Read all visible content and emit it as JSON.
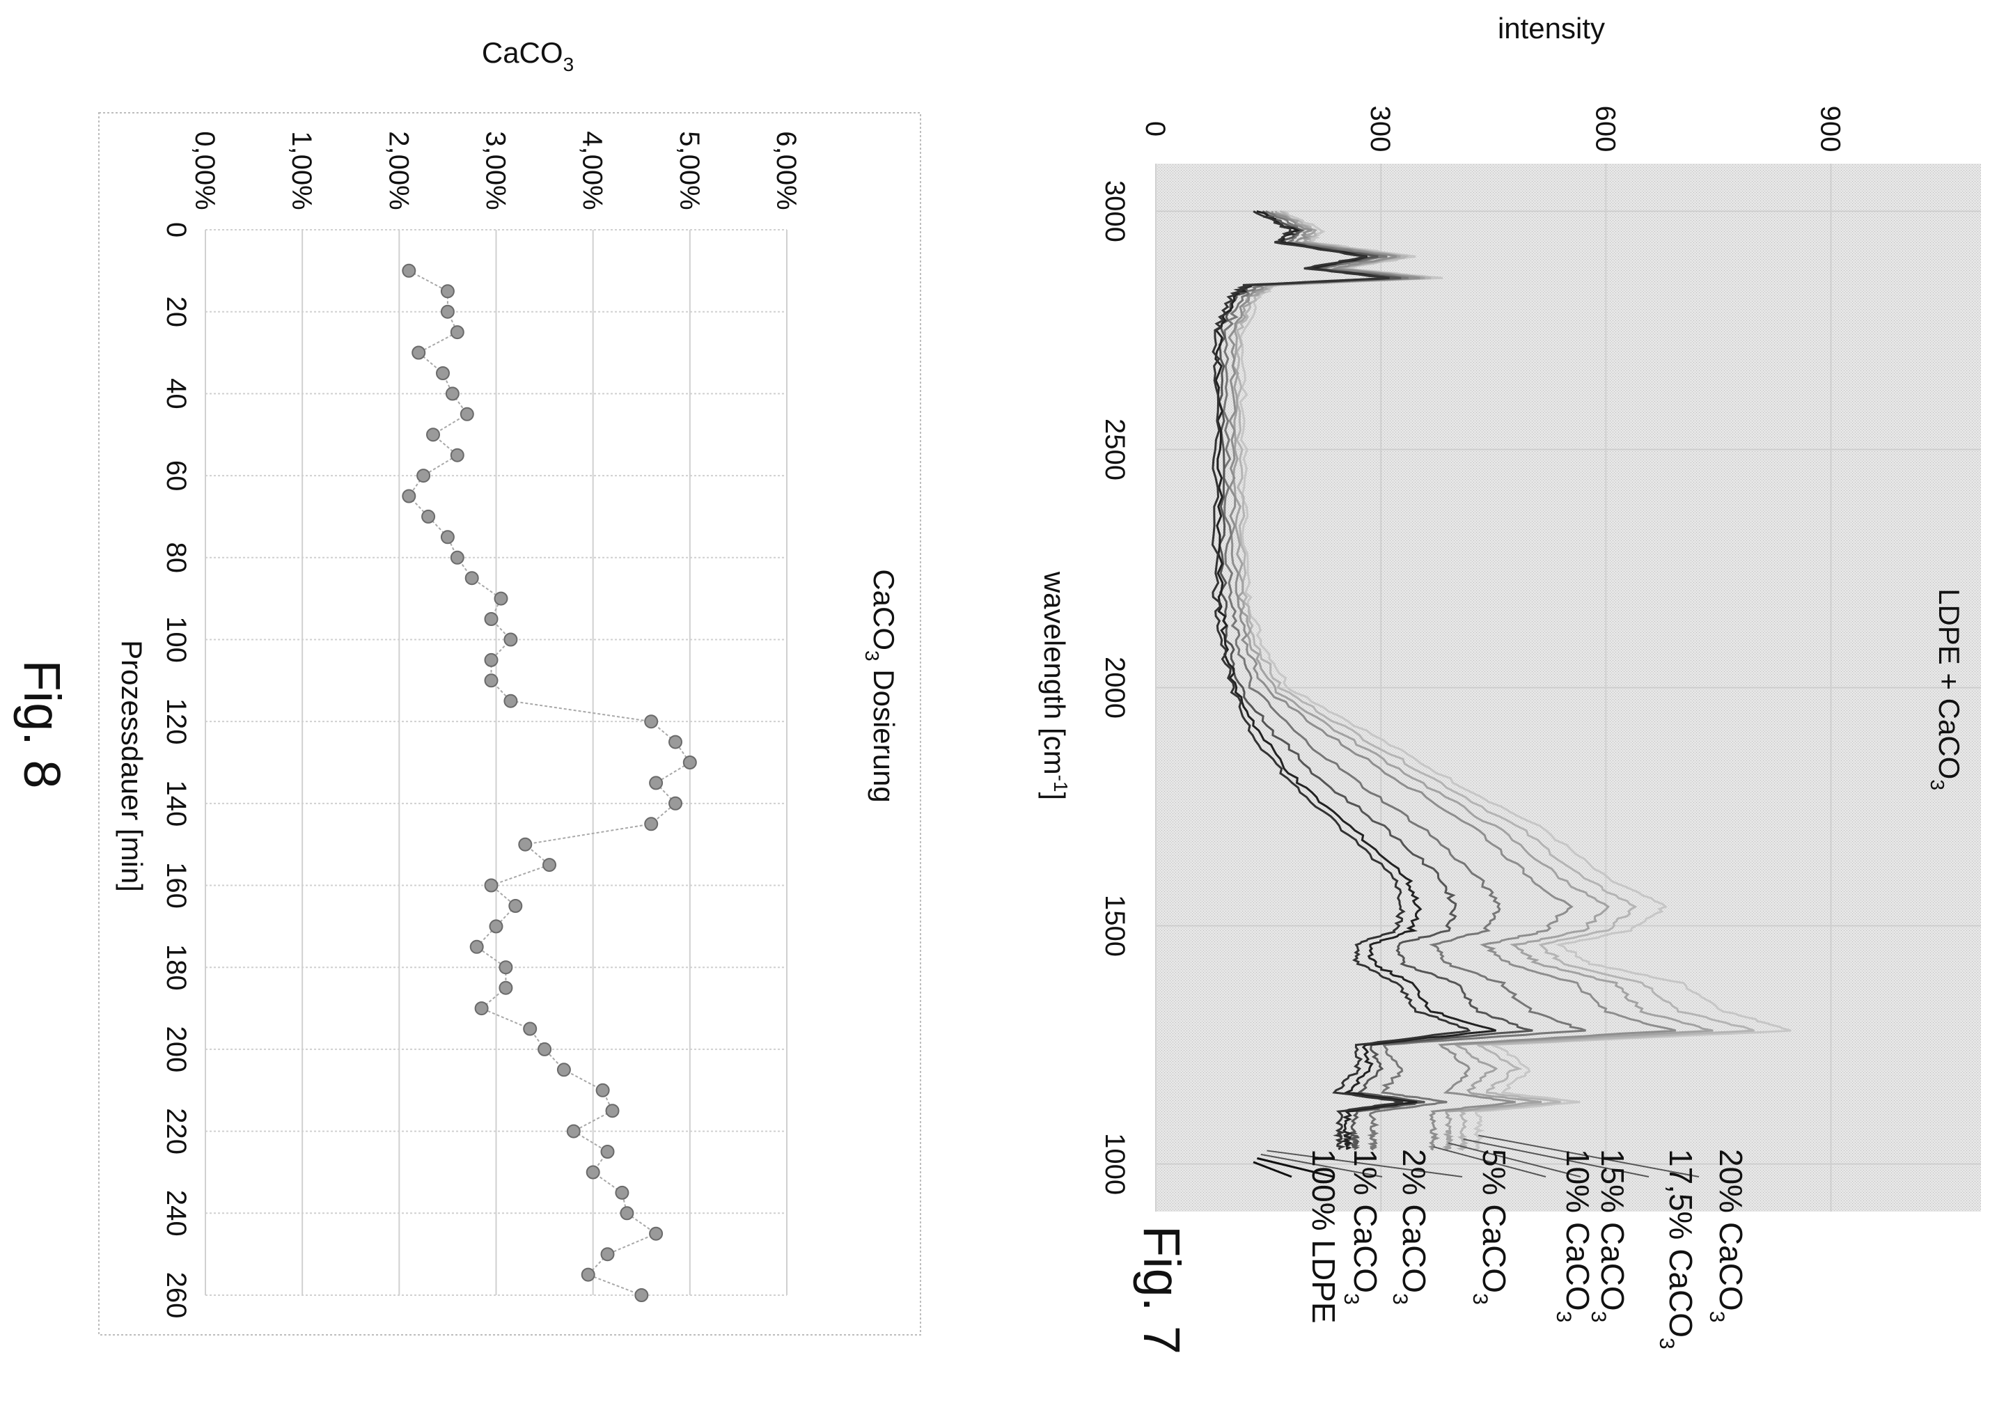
{
  "fig7": {
    "figure_label": "Fig. 7",
    "chart_data": {
      "type": "line",
      "title": "LDPE + CaCO3",
      "title_main": "LDPE + CaCO",
      "title_sub": "3",
      "xlabel": "wavelength [cm",
      "xlabel_sup": "-1",
      "xlabel_close": "]",
      "ylabel": "intensity",
      "x_reversed": true,
      "xlim": [
        3100,
        900
      ],
      "ylim": [
        0,
        1100
      ],
      "x_ticks": [
        "3000",
        "2500",
        "2000",
        "1500",
        "1000"
      ],
      "x_tick_values": [
        3000,
        2500,
        2000,
        1500,
        1000
      ],
      "y_ticks": [
        "0",
        "300",
        "600",
        "900"
      ],
      "y_tick_values": [
        0,
        300,
        600,
        900
      ],
      "grid": true,
      "legend_position": "right, as line annotations",
      "x_nodes": [
        3000,
        2960,
        2935,
        2905,
        2880,
        2860,
        2845,
        2820,
        2750,
        2600,
        2400,
        2200,
        2100,
        2000,
        1900,
        1800,
        1700,
        1600,
        1540,
        1490,
        1460,
        1420,
        1380,
        1320,
        1280,
        1250,
        1200,
        1150,
        1130,
        1110,
        1070,
        1050,
        1030
      ],
      "series": [
        {
          "name": "100% LDPE",
          "name_main": "100% LDPE",
          "name_sub": "",
          "color": "#333333",
          "values": [
            130,
            180,
            160,
            280,
            200,
            310,
            120,
            100,
            80,
            80,
            80,
            80,
            88,
            100,
            130,
            180,
            250,
            320,
            330,
            320,
            265,
            270,
            320,
            350,
            420,
            270,
            270,
            240,
            330,
            245,
            245,
            245,
            245
          ]
        },
        {
          "name": "1% CaCO3",
          "name_main": "1% CaCO",
          "name_sub": "3",
          "color": "#222222",
          "values": [
            135,
            185,
            165,
            285,
            205,
            315,
            125,
            104,
            84,
            84,
            84,
            85,
            92,
            105,
            140,
            190,
            265,
            335,
            350,
            340,
            285,
            290,
            340,
            370,
            450,
            280,
            285,
            255,
            345,
            255,
            255,
            255,
            255
          ]
        },
        {
          "name": "2% CaCO3",
          "name_main": "2% CaCO",
          "name_sub": "3",
          "color": "#555555",
          "values": [
            140,
            190,
            170,
            295,
            210,
            325,
            130,
            108,
            88,
            88,
            88,
            90,
            97,
            112,
            160,
            225,
            310,
            380,
            400,
            390,
            320,
            330,
            400,
            430,
            500,
            285,
            300,
            270,
            360,
            265,
            265,
            265,
            265
          ]
        },
        {
          "name": "5% CaCO3",
          "name_main": "5% CaCO",
          "name_sub": "3",
          "color": "#777777",
          "values": [
            148,
            195,
            180,
            305,
            220,
            340,
            138,
            115,
            95,
            95,
            95,
            98,
            108,
            128,
            190,
            270,
            360,
            430,
            460,
            440,
            370,
            390,
            460,
            500,
            570,
            300,
            330,
            300,
            390,
            290,
            290,
            290,
            290
          ]
        },
        {
          "name": "10% CaCO3",
          "name_main": "10% CaCO",
          "name_sub": "3",
          "color": "#8e8e8e",
          "values": [
            155,
            205,
            190,
            320,
            235,
            355,
            145,
            122,
            102,
            102,
            103,
            106,
            118,
            145,
            230,
            330,
            430,
            500,
            550,
            520,
            440,
            470,
            560,
            600,
            690,
            380,
            420,
            390,
            480,
            370,
            370,
            370,
            370
          ]
        },
        {
          "name": "15% CaCO3",
          "name_main": "15% CaCO",
          "name_sub": "3",
          "color": "#a2a2a2",
          "values": [
            160,
            210,
            195,
            328,
            240,
            362,
            150,
            127,
            107,
            107,
            108,
            112,
            125,
            155,
            250,
            355,
            460,
            540,
            600,
            570,
            480,
            510,
            610,
            650,
            740,
            400,
            450,
            415,
            510,
            390,
            390,
            390,
            390
          ]
        },
        {
          "name": "17,5% CaCO3",
          "name_main": "17,5% CaCO",
          "name_sub": "3",
          "color": "#b4b4b4",
          "values": [
            165,
            215,
            200,
            335,
            245,
            370,
            155,
            132,
            112,
            112,
            113,
            117,
            132,
            165,
            270,
            380,
            490,
            570,
            640,
            600,
            510,
            545,
            650,
            700,
            800,
            430,
            480,
            440,
            540,
            410,
            410,
            410,
            410
          ]
        },
        {
          "name": "20% CaCO3",
          "name_main": "20% CaCO",
          "name_sub": "3",
          "color": "#c6c6c6",
          "values": [
            170,
            222,
            208,
            345,
            252,
            380,
            160,
            137,
            117,
            117,
            118,
            122,
            140,
            178,
            290,
            400,
            520,
            600,
            680,
            630,
            540,
            580,
            700,
            760,
            850,
            450,
            500,
            460,
            565,
            430,
            430,
            430,
            430
          ]
        }
      ]
    }
  },
  "fig8": {
    "figure_label": "Fig. 8",
    "chart_data": {
      "type": "line",
      "title": "CaCO3 Dosierung",
      "title_main": "CaCO",
      "title_sub": "3",
      "title_rest": " Dosierung",
      "xlabel": "Prozessdauer [min]",
      "ylabel": "CaCO3",
      "ylabel_main": "CaCO",
      "ylabel_sub": "3",
      "xlim": [
        0,
        260
      ],
      "ylim": [
        0,
        6
      ],
      "x_ticks": [
        "0",
        "20",
        "40",
        "60",
        "80",
        "100",
        "120",
        "140",
        "160",
        "180",
        "200",
        "220",
        "240",
        "260"
      ],
      "x_tick_values": [
        0,
        20,
        40,
        60,
        80,
        100,
        120,
        140,
        160,
        180,
        200,
        220,
        240,
        260
      ],
      "y_ticks": [
        "0,00%",
        "1,00%",
        "2,00%",
        "3,00%",
        "4,00%",
        "5,00%",
        "6,00%"
      ],
      "y_tick_values": [
        0,
        1,
        2,
        3,
        4,
        5,
        6
      ],
      "grid": true,
      "marker": "circle",
      "series": [
        {
          "name": "",
          "color": "#9a9a9a",
          "x": [
            10,
            15,
            20,
            25,
            30,
            35,
            40,
            45,
            50,
            55,
            60,
            65,
            70,
            75,
            80,
            85,
            90,
            95,
            100,
            105,
            110,
            115,
            120,
            125,
            130,
            135,
            140,
            145,
            150,
            155,
            160,
            165,
            170,
            175,
            180,
            185,
            190,
            195,
            200,
            205,
            210,
            215,
            220,
            225,
            230,
            235,
            240,
            245,
            250,
            255,
            260
          ],
          "values": [
            2.1,
            2.5,
            2.5,
            2.6,
            2.2,
            2.45,
            2.55,
            2.7,
            2.35,
            2.6,
            2.25,
            2.1,
            2.3,
            2.5,
            2.6,
            2.75,
            3.05,
            2.95,
            3.15,
            2.95,
            2.95,
            3.15,
            4.6,
            4.85,
            5.0,
            4.65,
            4.85,
            4.6,
            3.3,
            3.55,
            2.95,
            3.2,
            3.0,
            2.8,
            3.1,
            3.1,
            2.85,
            3.35,
            3.5,
            3.7,
            4.1,
            4.2,
            3.8,
            4.15,
            4.0,
            4.3,
            4.35,
            4.65,
            4.15,
            3.95,
            4.5
          ]
        }
      ]
    }
  }
}
